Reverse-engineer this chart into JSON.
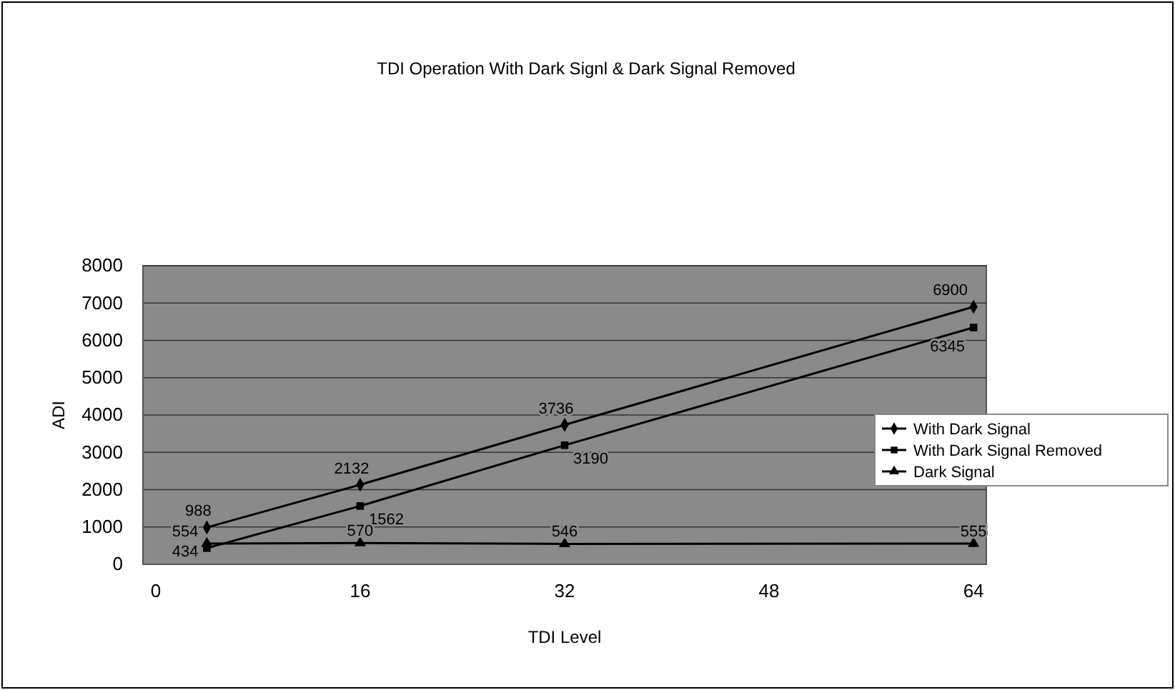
{
  "chart_data": {
    "type": "line",
    "title": "TDI Operation With Dark Signl & Dark Signal Removed",
    "xlabel": "TDI Level",
    "ylabel": "ADI",
    "x": [
      4,
      16,
      32,
      64
    ],
    "series": [
      {
        "name": "With Dark Signal",
        "color": "#000000",
        "values": [
          988,
          2132,
          3736,
          6900
        ],
        "marker": "diamond"
      },
      {
        "name": "With Dark Signal Removed",
        "color": "#000000",
        "values": [
          434,
          1562,
          3190,
          6345
        ],
        "marker": "square"
      },
      {
        "name": "Dark Signal",
        "color": "#000000",
        "values": [
          554,
          570,
          546,
          555
        ],
        "marker": "triangle"
      }
    ],
    "xlim": [
      -1,
      65
    ],
    "xticks": [
      0,
      16,
      32,
      48,
      64
    ],
    "ylim": [
      0,
      8000
    ],
    "yticks": [
      0,
      1000,
      2000,
      3000,
      4000,
      5000,
      6000,
      7000,
      8000
    ],
    "grid": "y",
    "legend": "right",
    "data_labels": true
  }
}
